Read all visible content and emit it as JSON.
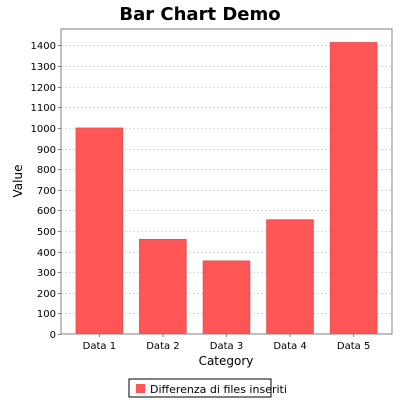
{
  "chart_data": {
    "type": "bar",
    "title": "Bar Chart Demo",
    "xlabel": "Category",
    "ylabel": "Value",
    "categories": [
      "Data 1",
      "Data 2",
      "Data 3",
      "Data 4",
      "Data 5"
    ],
    "series": [
      {
        "name": "Differenza di files inseriti",
        "values": [
          1000,
          460,
          355,
          555,
          1415
        ]
      }
    ],
    "ylim": [
      0,
      1480
    ],
    "yticks": [
      0,
      100,
      200,
      300,
      400,
      500,
      600,
      700,
      800,
      900,
      1000,
      1100,
      1200,
      1300,
      1400
    ],
    "grid": true,
    "legend_position": "bottom",
    "colors": {
      "bar": "#ff5555",
      "bar_outline": "#cc4444",
      "plot_background": "#ffffff",
      "plot_border": "#808080",
      "grid": "#d8d8d8"
    }
  }
}
